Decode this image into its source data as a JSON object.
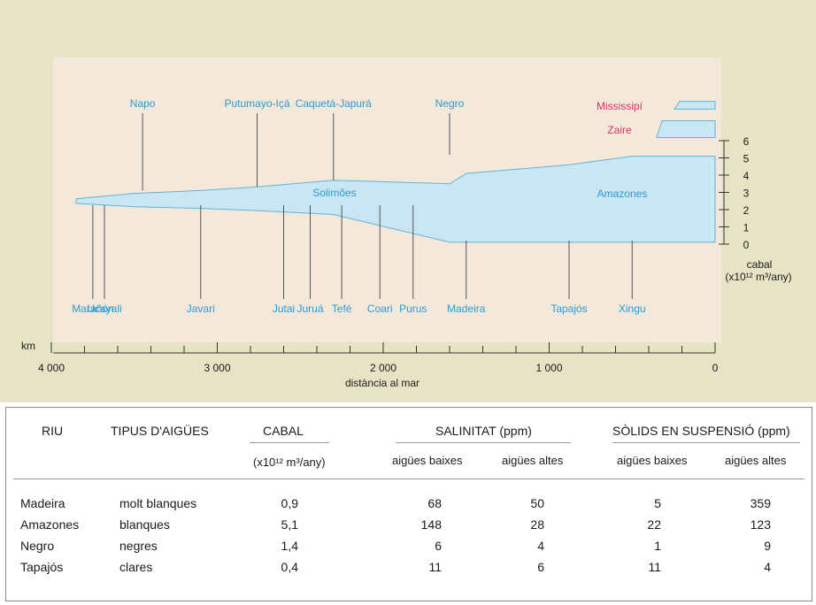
{
  "diagram": {
    "tributaries_north": [
      {
        "name": "Napo",
        "km": 3450
      },
      {
        "name": "Putumayo-Içá",
        "km": 2760
      },
      {
        "name": "Caquetá-Japurá",
        "km": 2300
      },
      {
        "name": "Negro",
        "km": 1600
      }
    ],
    "tributaries_south": [
      {
        "name": "Marañón",
        "km": 3750
      },
      {
        "name": "Ucayali",
        "km": 3680
      },
      {
        "name": "Javari",
        "km": 3100
      },
      {
        "name": "Jutai",
        "km": 2600
      },
      {
        "name": "Juruá",
        "km": 2440
      },
      {
        "name": "Tefé",
        "km": 2250
      },
      {
        "name": "Coari",
        "km": 2020
      },
      {
        "name": "Purus",
        "km": 1820
      },
      {
        "name": "Madeira",
        "km": 1500
      },
      {
        "name": "Tapajós",
        "km": 880
      },
      {
        "name": "Xingu",
        "km": 500
      }
    ],
    "river_labels": {
      "upper": "Solimões",
      "lower": "Amazones"
    },
    "comparison": [
      {
        "name": "Mississipí",
        "discharge": 0.6,
        "color": "#d63366"
      },
      {
        "name": "Zaire",
        "discharge": 1.3,
        "color": "#d63366"
      }
    ],
    "discharge_profile": [
      {
        "km": 3850,
        "q": 0.3
      },
      {
        "km": 3500,
        "q": 0.9
      },
      {
        "km": 3100,
        "q": 1.2
      },
      {
        "km": 2760,
        "q": 1.6
      },
      {
        "km": 2300,
        "q": 2.3
      },
      {
        "km": 1600,
        "q": 3.5
      },
      {
        "km": 1500,
        "q": 4.1
      },
      {
        "km": 880,
        "q": 4.6
      },
      {
        "km": 500,
        "q": 5.1
      },
      {
        "km": 0,
        "q": 5.1
      }
    ],
    "x_axis": {
      "unit": "km",
      "label": "distància al mar",
      "ticks": [
        "4 000",
        "3 000",
        "2 000",
        "1 000",
        "0"
      ],
      "range": [
        4000,
        0
      ]
    },
    "y_axis": {
      "label_line1": "cabal",
      "label_line2": "(x10¹² m³/any)",
      "ticks": [
        "0",
        "1",
        "2",
        "3",
        "4",
        "5",
        "6"
      ],
      "range": [
        0,
        6
      ]
    },
    "colors": {
      "river": "#c9e6f3",
      "river_edge": "#62b3d9",
      "label": "#2a9bd3",
      "background": "#e6e4c4"
    }
  },
  "table": {
    "headers": {
      "riu": "RIU",
      "tipus": "TIPUS D'AIGÜES",
      "cabal": "CABAL",
      "cabal_unit": "(x10¹² m³/any)",
      "salinitat": "SALINITAT (ppm)",
      "solids": "SÒLIDS EN SUSPENSIÓ (ppm)",
      "baixes": "aigües baixes",
      "altes": "aigües altes"
    },
    "rows": [
      {
        "riu": "Madeira",
        "tipus": "molt blanques",
        "cabal": "0,9",
        "sal_baixes": "68",
        "sal_altes": "50",
        "sol_baixes": "5",
        "sol_altes": "359"
      },
      {
        "riu": "Amazones",
        "tipus": "blanques",
        "cabal": "5,1",
        "sal_baixes": "148",
        "sal_altes": "28",
        "sol_baixes": "22",
        "sol_altes": "123"
      },
      {
        "riu": "Negro",
        "tipus": "negres",
        "cabal": "1,4",
        "sal_baixes": "6",
        "sal_altes": "4",
        "sol_baixes": "1",
        "sol_altes": "9"
      },
      {
        "riu": "Tapajós",
        "tipus": "clares",
        "cabal": "0,4",
        "sal_baixes": "11",
        "sal_altes": "6",
        "sol_baixes": "11",
        "sol_altes": "4"
      }
    ]
  }
}
